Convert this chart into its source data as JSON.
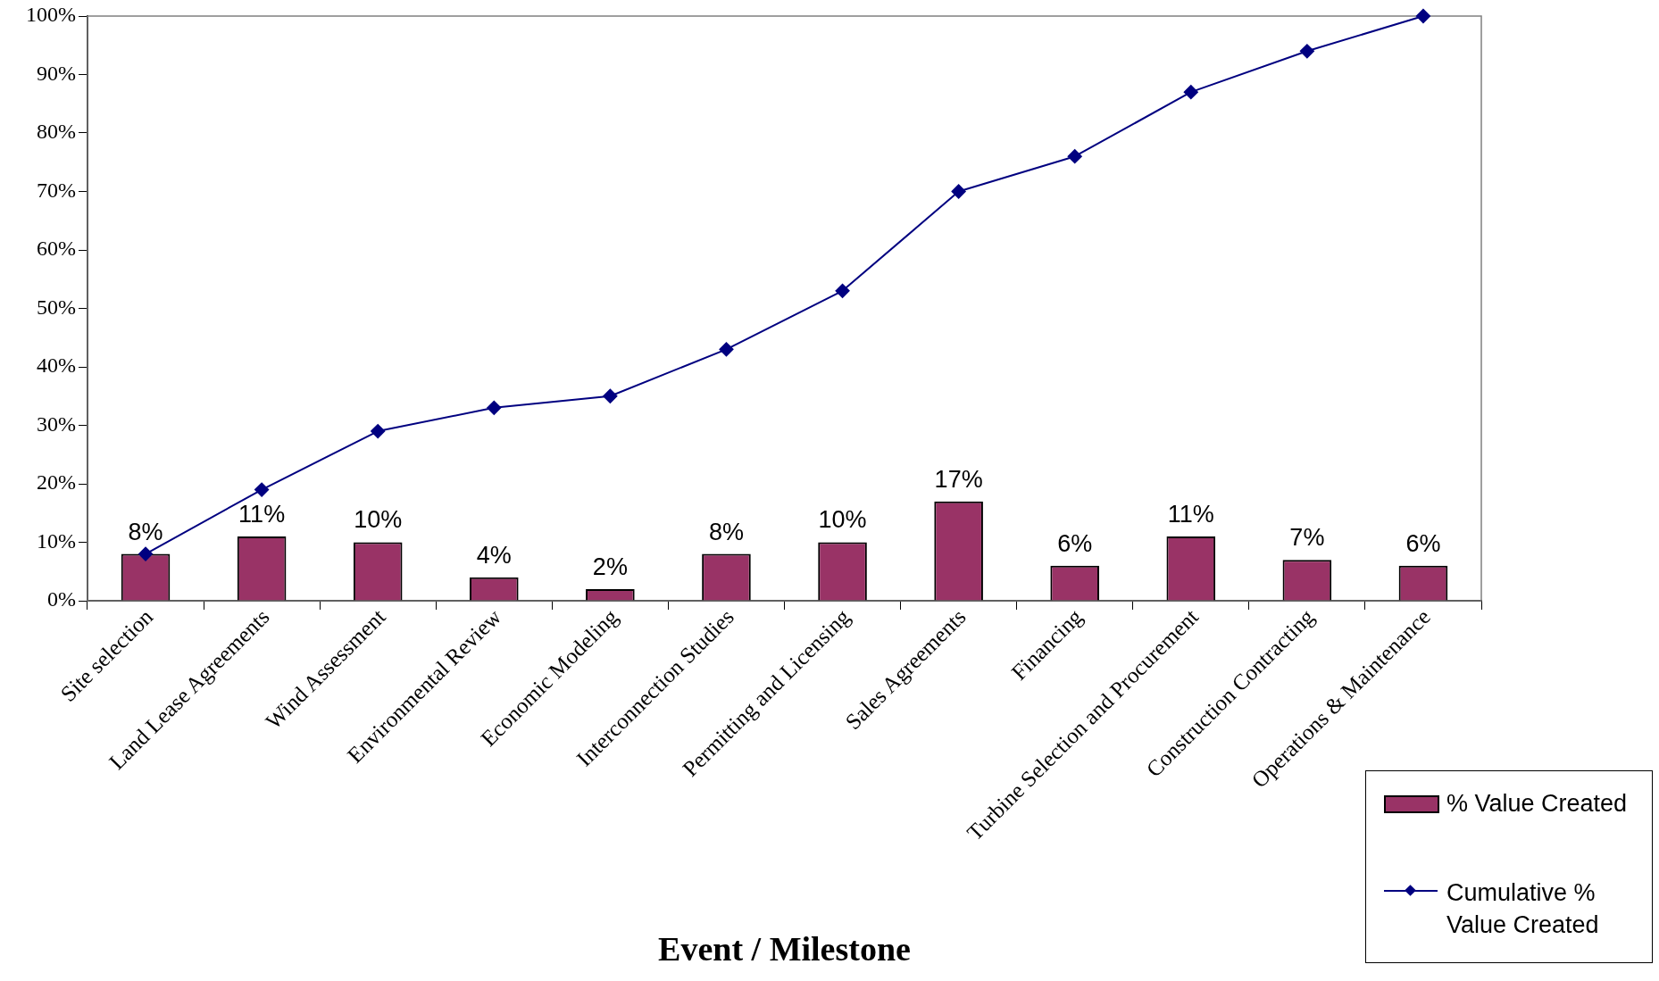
{
  "chart_data": {
    "type": "bar",
    "xlabel": "Event / Milestone",
    "categories": [
      "Site selection",
      "Land Lease Agreements",
      "Wind Assessment",
      "Environmental Review",
      "Economic Modeling",
      "Interconnection Studies",
      "Permitting and Licensing",
      "Sales Agreements",
      "Financing",
      "Turbine Selection and Procurement",
      "Construction Contracting",
      "Operations & Maintenance"
    ],
    "series": [
      {
        "name": "% Value Created",
        "color": "#993366",
        "values": [
          8,
          11,
          10,
          4,
          2,
          8,
          10,
          17,
          6,
          11,
          7,
          6
        ],
        "value_labels": [
          "8%",
          "11%",
          "10%",
          "4%",
          "2%",
          "8%",
          "10%",
          "17%",
          "6%",
          "11%",
          "7%",
          "6%"
        ]
      },
      {
        "name": "Cumulative % Value Created",
        "type": "line",
        "color": "#000080",
        "marker": "diamond",
        "values": [
          8,
          19,
          29,
          33,
          35,
          43,
          53,
          70,
          76,
          87,
          94,
          100
        ]
      }
    ],
    "ylim": [
      0,
      100
    ],
    "yticks": [
      {
        "value": 0,
        "label": "0%"
      },
      {
        "value": 10,
        "label": "10%"
      },
      {
        "value": 20,
        "label": "20%"
      },
      {
        "value": 30,
        "label": "30%"
      },
      {
        "value": 40,
        "label": "40%"
      },
      {
        "value": 50,
        "label": "50%"
      },
      {
        "value": 60,
        "label": "60%"
      },
      {
        "value": 70,
        "label": "70%"
      },
      {
        "value": 80,
        "label": "80%"
      },
      {
        "value": 90,
        "label": "90%"
      },
      {
        "value": 100,
        "label": "100%"
      }
    ],
    "grid": false,
    "legend": "bottom right"
  }
}
